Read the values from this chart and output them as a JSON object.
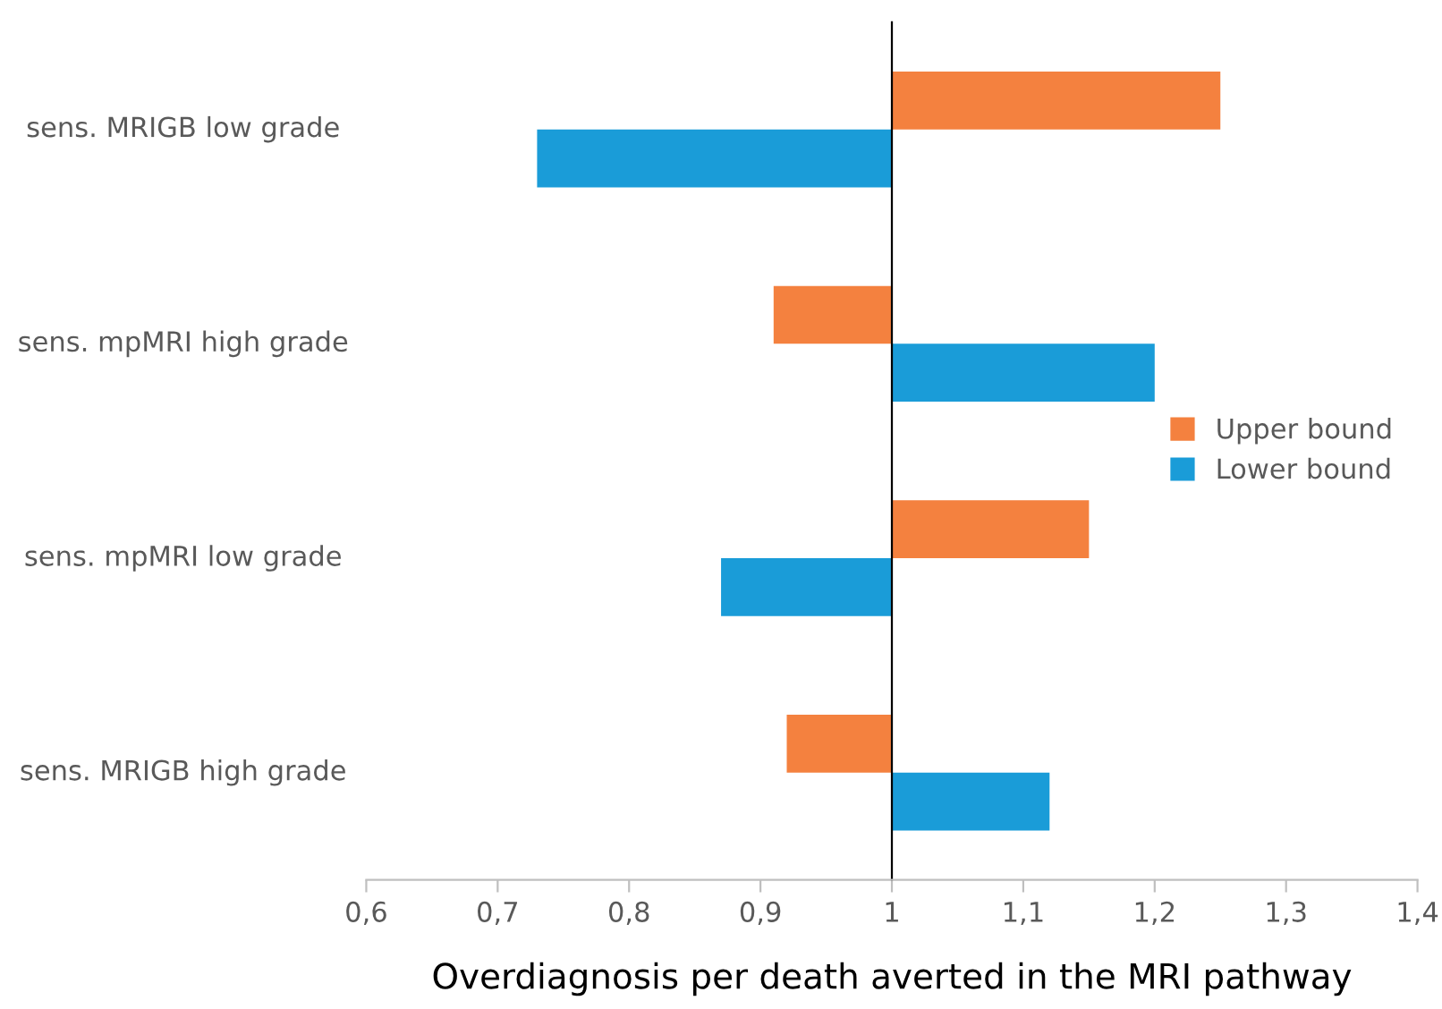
{
  "chart_data": {
    "type": "bar",
    "orientation": "horizontal",
    "xlabel": "Overdiagnosis per death averted in the MRI pathway",
    "categories": [
      "sens. MRIGB low grade",
      "sens. mpMRI high grade",
      "sens. mpMRI low grade",
      "sens. MRIGB high grade"
    ],
    "series": [
      {
        "name": "Upper bound",
        "color": "#f4813f",
        "base": [
          1,
          1,
          1,
          1
        ],
        "values": [
          0.25,
          -0.09,
          0.15,
          -0.08
        ]
      },
      {
        "name": "Lower bound",
        "color": "#1a9cd8",
        "base": [
          1,
          1,
          1,
          1
        ],
        "values": [
          -0.27,
          0.2,
          -0.13,
          0.12
        ]
      }
    ],
    "xlim": [
      0.6,
      1.4
    ],
    "xticks": [
      {
        "value": 0.6,
        "label": "0,6"
      },
      {
        "value": 0.7,
        "label": "0,7"
      },
      {
        "value": 0.8,
        "label": "0,8"
      },
      {
        "value": 0.9,
        "label": "0,9"
      },
      {
        "value": 1,
        "label": "1"
      },
      {
        "value": 1.1,
        "label": "1,1"
      },
      {
        "value": 1.2,
        "label": "1,2"
      },
      {
        "value": 1.3,
        "label": "1,3"
      },
      {
        "value": 1.4,
        "label": "1,4"
      }
    ],
    "legend": "center right"
  }
}
